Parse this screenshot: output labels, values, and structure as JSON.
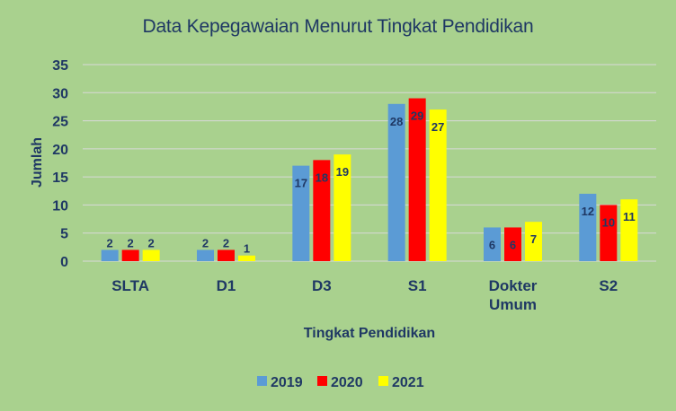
{
  "chart_data": {
    "type": "bar",
    "title": "Data Kepegawaian Menurut Tingkat Pendidikan",
    "xlabel": "Tingkat Pendidikan",
    "ylabel": "Jumlah",
    "categories": [
      [
        "SLTA"
      ],
      [
        "D1"
      ],
      [
        "D3"
      ],
      [
        "S1"
      ],
      [
        "Dokter",
        "Umum"
      ],
      [
        "S2"
      ]
    ],
    "series": [
      {
        "name": "2019",
        "color": "#5b9bd5",
        "values": [
          2,
          2,
          17,
          28,
          6,
          12
        ]
      },
      {
        "name": "2020",
        "color": "#ff0000",
        "values": [
          2,
          2,
          18,
          29,
          6,
          10
        ]
      },
      {
        "name": "2021",
        "color": "#ffff00",
        "values": [
          2,
          1,
          19,
          27,
          7,
          11
        ]
      }
    ],
    "ylim": [
      0,
      35
    ],
    "yticks": [
      0,
      5,
      10,
      15,
      20,
      25,
      30,
      35
    ],
    "grid": true,
    "legend_position": "bottom",
    "background": "#a9d18e",
    "text_color": "#1f3864",
    "grid_color": "#d9d9d9"
  }
}
